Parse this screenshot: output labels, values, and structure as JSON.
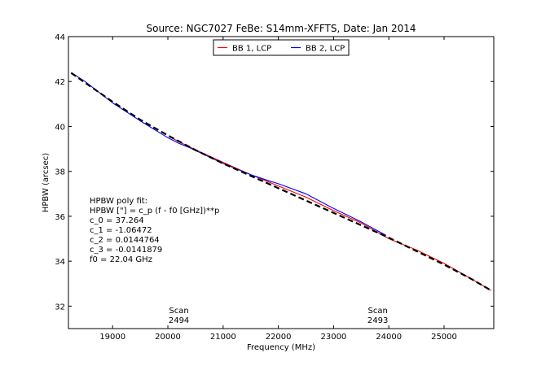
{
  "chart_data": {
    "type": "line",
    "title": "Source: NGC7027 FeBe: S14mm-XFFTS, Date: Jan 2014",
    "xlabel": "Frequency (MHz)",
    "ylabel": "HPBW (arcsec)",
    "xlim": [
      18200,
      25900
    ],
    "ylim": [
      31,
      44
    ],
    "xticks": [
      19000,
      20000,
      21000,
      22000,
      23000,
      24000,
      25000
    ],
    "yticks": [
      32,
      34,
      36,
      38,
      40,
      42,
      44
    ],
    "grid": false,
    "legend_placement": "top-center",
    "series": [
      {
        "name": "BB 1, LCP",
        "color": "#ff0000",
        "style": "solid",
        "x": [
          20100,
          20300,
          20600,
          21000,
          21500,
          22000,
          22500,
          23000,
          23500,
          24000,
          24500,
          25000,
          25400,
          25850
        ],
        "y": [
          39.45,
          39.2,
          38.85,
          38.4,
          37.85,
          37.35,
          36.85,
          36.25,
          35.7,
          35.0,
          34.5,
          33.9,
          33.35,
          32.7
        ]
      },
      {
        "name": "BB 2, LCP",
        "color": "#0000ff",
        "style": "solid",
        "x": [
          18250,
          18500,
          19000,
          19500,
          20000,
          20200,
          20400,
          21000,
          21500,
          21800,
          22000,
          22500,
          23000,
          23500,
          23800,
          23950
        ],
        "y": [
          42.4,
          42.0,
          41.05,
          40.25,
          39.5,
          39.25,
          39.05,
          38.35,
          37.85,
          37.6,
          37.45,
          37.0,
          36.35,
          35.75,
          35.35,
          35.15
        ]
      },
      {
        "name": "",
        "color": "#000000",
        "style": "dashed",
        "x": [
          18250,
          18500,
          19000,
          19500,
          20000,
          20500,
          21000,
          21500,
          22000,
          22500,
          23000,
          23500,
          24000,
          24500,
          25000,
          25500,
          25850
        ],
        "y": [
          42.38,
          41.95,
          41.1,
          40.3,
          39.6,
          38.95,
          38.35,
          37.8,
          37.25,
          36.7,
          36.15,
          35.6,
          35.05,
          34.45,
          33.85,
          33.2,
          32.7
        ]
      }
    ],
    "annotations": {
      "fit_text": [
        "HPBW poly fit:",
        "HPBW [\"] = c_p (f - f0 [GHz])**p",
        "c_0 = 37.264",
        "c_1 = -1.06472",
        "c_2 = 0.0144764",
        "c_3 = -0.0141879",
        "f0 = 22.04 GHz"
      ],
      "scans": [
        {
          "label": "Scan",
          "number": "2494",
          "x": 20200
        },
        {
          "label": "Scan",
          "number": "2493",
          "x": 23800
        }
      ]
    }
  }
}
